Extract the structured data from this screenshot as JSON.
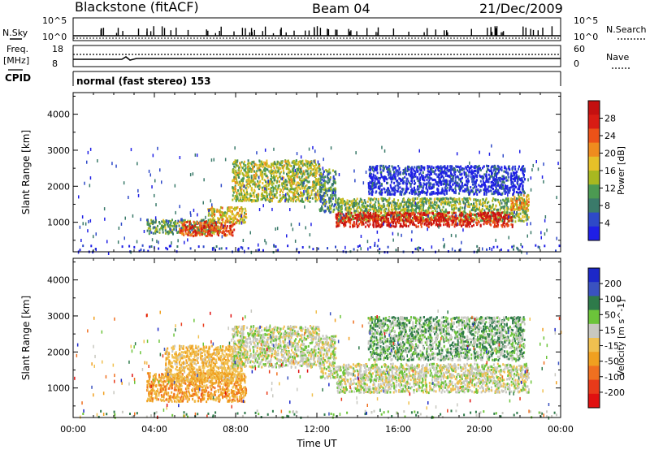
{
  "header": {
    "station": "Blackstone (fitACF)",
    "beam": "Beam 04",
    "date": "21/Dec/2009"
  },
  "nsky_panel": {
    "label": "N.Sky",
    "right_label": "N.Search",
    "ticks_left": [
      "10^5",
      "10^0"
    ],
    "ticks_right": [
      "10^5",
      "10^0"
    ]
  },
  "freq_panel": {
    "label_line1": "Freq.",
    "label_line2": "[MHz]",
    "right_label": "Nave",
    "ticks_left": [
      "18",
      "8"
    ],
    "ticks_right": [
      "60",
      "0"
    ]
  },
  "cpid_panel": {
    "label": "CPID",
    "mode_text": "normal (fast stereo) 153"
  },
  "colors": {
    "power": [
      "#1f1fe6",
      "#2e49c8",
      "#3a7a6a",
      "#4c9a52",
      "#a8b820",
      "#e6c028",
      "#ef8c1e",
      "#ec5218",
      "#d81c14",
      "#c41010"
    ],
    "velocity": [
      "#1c28c8",
      "#3a52c0",
      "#2e7a4a",
      "#6cc43a",
      "#c8c8c0",
      "#f0c050",
      "#f0a020",
      "#f07020",
      "#e83a1a",
      "#e01010"
    ]
  },
  "chart_data": [
    {
      "type": "heatmap",
      "name": "power",
      "xlabel": "",
      "ylabel": "Slant Range [km]",
      "xlim": [
        0,
        24
      ],
      "ylim": [
        180,
        4600
      ],
      "x_ticks": [
        "00:00",
        "04:00",
        "08:00",
        "12:00",
        "16:00",
        "20:00",
        "00:00"
      ],
      "y_ticks": [
        1000,
        2000,
        3000,
        4000
      ],
      "colorbar": {
        "label": "Power [dB]",
        "range": [
          0,
          32
        ],
        "ticks": [
          "4",
          "8",
          "12",
          "16",
          "20",
          "24",
          "28"
        ]
      },
      "regions": [
        {
          "t_start": 3.6,
          "t_end": 7.2,
          "range_min": 700,
          "range_max": 1100,
          "level": 0.35
        },
        {
          "t_start": 5.2,
          "t_end": 7.9,
          "range_min": 650,
          "range_max": 1050,
          "level": 0.78
        },
        {
          "t_start": 6.6,
          "t_end": 8.5,
          "range_min": 1000,
          "range_max": 1450,
          "level": 0.55
        },
        {
          "t_start": 7.8,
          "t_end": 12.1,
          "range_min": 1600,
          "range_max": 2750,
          "level": 0.45
        },
        {
          "t_start": 12.1,
          "t_end": 12.9,
          "range_min": 1300,
          "range_max": 2500,
          "level": 0.3
        },
        {
          "t_start": 12.9,
          "t_end": 22.4,
          "range_min": 1050,
          "range_max": 1700,
          "level": 0.4
        },
        {
          "t_start": 12.9,
          "t_end": 21.6,
          "range_min": 900,
          "range_max": 1300,
          "level": 0.88
        },
        {
          "t_start": 21.5,
          "t_end": 22.4,
          "range_min": 1350,
          "range_max": 1800,
          "level": 0.6
        },
        {
          "t_start": 14.5,
          "t_end": 22.2,
          "range_min": 1800,
          "range_max": 2600,
          "level": 0.08
        },
        {
          "t_start": 0.0,
          "t_end": 24.0,
          "range_min": 200,
          "range_max": 400,
          "level": 0.1
        }
      ]
    },
    {
      "type": "heatmap",
      "name": "velocity",
      "xlabel": "Time UT",
      "ylabel": "Slant Range [km]",
      "xlim": [
        0,
        24
      ],
      "ylim": [
        180,
        4600
      ],
      "x_ticks": [
        "00:00",
        "04:00",
        "08:00",
        "12:00",
        "16:00",
        "20:00",
        "00:00"
      ],
      "y_ticks": [
        1000,
        2000,
        3000,
        4000
      ],
      "colorbar": {
        "label": "Velocity [m s^-1]",
        "ticks": [
          "200",
          "100",
          "50",
          "15",
          "-15",
          "-50",
          "-100",
          "-200"
        ]
      },
      "regions": [
        {
          "t_start": 3.6,
          "t_end": 8.5,
          "range_min": 650,
          "range_max": 1450,
          "velocity": -60
        },
        {
          "t_start": 4.5,
          "t_end": 8.3,
          "range_min": 1200,
          "range_max": 2200,
          "velocity": -40
        },
        {
          "t_start": 7.8,
          "t_end": 12.1,
          "range_min": 1600,
          "range_max": 2750,
          "velocity": 0
        },
        {
          "t_start": 12.1,
          "t_end": 12.9,
          "range_min": 1300,
          "range_max": 2500,
          "velocity": 0
        },
        {
          "t_start": 12.9,
          "t_end": 22.4,
          "range_min": 900,
          "range_max": 1700,
          "velocity": 0
        },
        {
          "t_start": 14.5,
          "t_end": 22.2,
          "range_min": 1800,
          "range_max": 3000,
          "velocity": 20
        },
        {
          "t_start": 0.0,
          "t_end": 24.0,
          "range_min": 200,
          "range_max": 400,
          "velocity": 30
        }
      ]
    }
  ]
}
